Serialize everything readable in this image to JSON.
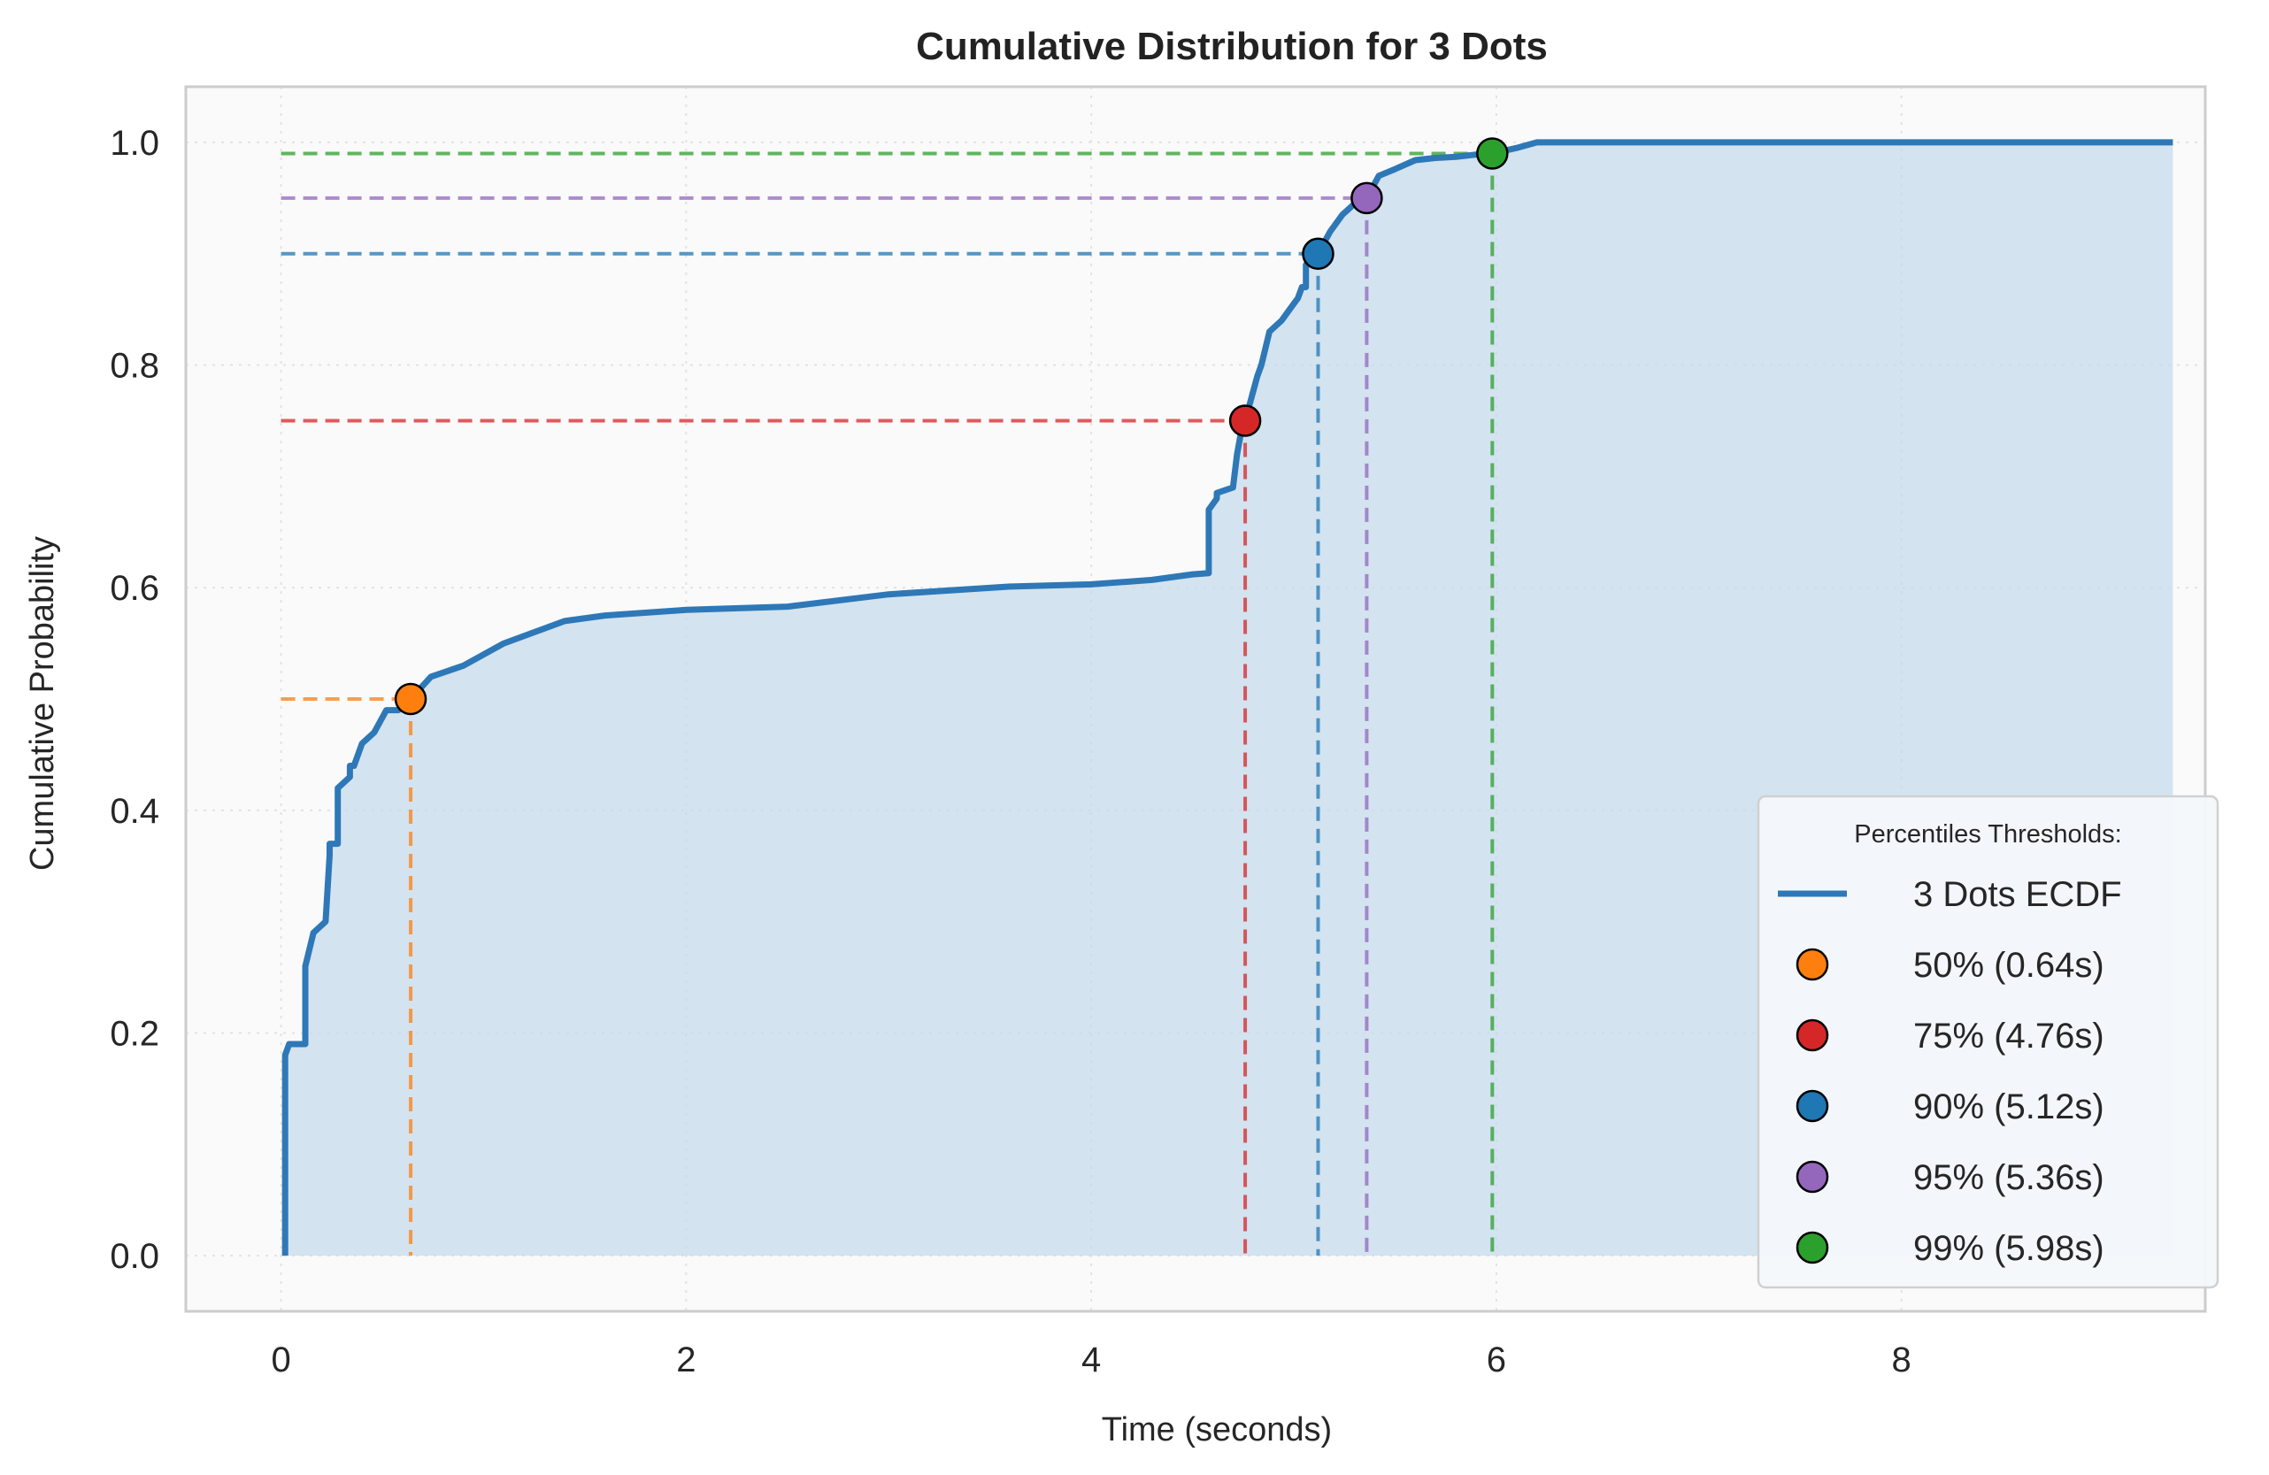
{
  "chart_data": {
    "type": "line",
    "title": "Cumulative Distribution for 3 Dots",
    "xlabel": "Time (seconds)",
    "ylabel": "Cumulative Probability",
    "xlim": [
      -0.47,
      9.5
    ],
    "ylim": [
      -0.05,
      1.05
    ],
    "xticks": [
      0,
      2,
      4,
      6,
      8
    ],
    "yticks": [
      0.0,
      0.2,
      0.4,
      0.6,
      0.8,
      1.0
    ],
    "xtick_labels": [
      "0",
      "2",
      "4",
      "6",
      "8"
    ],
    "ytick_labels": [
      "0.0",
      "0.2",
      "0.4",
      "0.6",
      "0.8",
      "1.0"
    ],
    "grid": true,
    "legend_position": "lower-right",
    "legend_title": "Percentiles Thresholds:",
    "series": [
      {
        "name": "3 Dots ECDF",
        "color": "#2e78b7",
        "fill": true,
        "x": [
          0.02,
          0.02,
          0.04,
          0.12,
          0.12,
          0.16,
          0.16,
          0.22,
          0.24,
          0.24,
          0.28,
          0.28,
          0.34,
          0.34,
          0.36,
          0.4,
          0.46,
          0.52,
          0.58,
          0.64,
          0.74,
          0.9,
          1.1,
          1.4,
          1.6,
          2.0,
          2.5,
          3.0,
          3.6,
          4.0,
          4.3,
          4.5,
          4.58,
          4.58,
          4.62,
          4.62,
          4.7,
          4.72,
          4.74,
          4.76,
          4.82,
          4.84,
          4.88,
          4.94,
          4.98,
          5.02,
          5.04,
          5.06,
          5.06,
          5.1,
          5.12,
          5.18,
          5.24,
          5.3,
          5.36,
          5.42,
          5.5,
          5.6,
          5.7,
          5.8,
          5.9,
          5.98,
          6.1,
          6.2,
          7.0,
          8.0,
          9.34
        ],
        "y": [
          0.0,
          0.18,
          0.19,
          0.19,
          0.26,
          0.29,
          0.29,
          0.3,
          0.36,
          0.37,
          0.37,
          0.42,
          0.43,
          0.44,
          0.44,
          0.46,
          0.47,
          0.49,
          0.49,
          0.5,
          0.52,
          0.53,
          0.55,
          0.57,
          0.575,
          0.58,
          0.583,
          0.594,
          0.601,
          0.603,
          0.607,
          0.612,
          0.613,
          0.67,
          0.68,
          0.685,
          0.69,
          0.72,
          0.74,
          0.75,
          0.79,
          0.8,
          0.83,
          0.84,
          0.85,
          0.86,
          0.87,
          0.87,
          0.89,
          0.9,
          0.9,
          0.92,
          0.935,
          0.945,
          0.95,
          0.97,
          0.976,
          0.984,
          0.986,
          0.987,
          0.989,
          0.99,
          0.995,
          1.0,
          1.0,
          1.0,
          1.0
        ]
      }
    ],
    "percentiles": [
      {
        "label": "50% (0.64s)",
        "x": 0.64,
        "y": 0.5,
        "color": "#ff7f0e"
      },
      {
        "label": "75% (4.76s)",
        "x": 4.76,
        "y": 0.75,
        "color": "#d62728"
      },
      {
        "label": "90% (5.12s)",
        "x": 5.12,
        "y": 0.9,
        "color": "#1f77b4"
      },
      {
        "label": "95% (5.36s)",
        "x": 5.36,
        "y": 0.95,
        "color": "#9467bd"
      },
      {
        "label": "99% (5.98s)",
        "x": 5.98,
        "y": 0.99,
        "color": "#2ca02c"
      }
    ]
  }
}
